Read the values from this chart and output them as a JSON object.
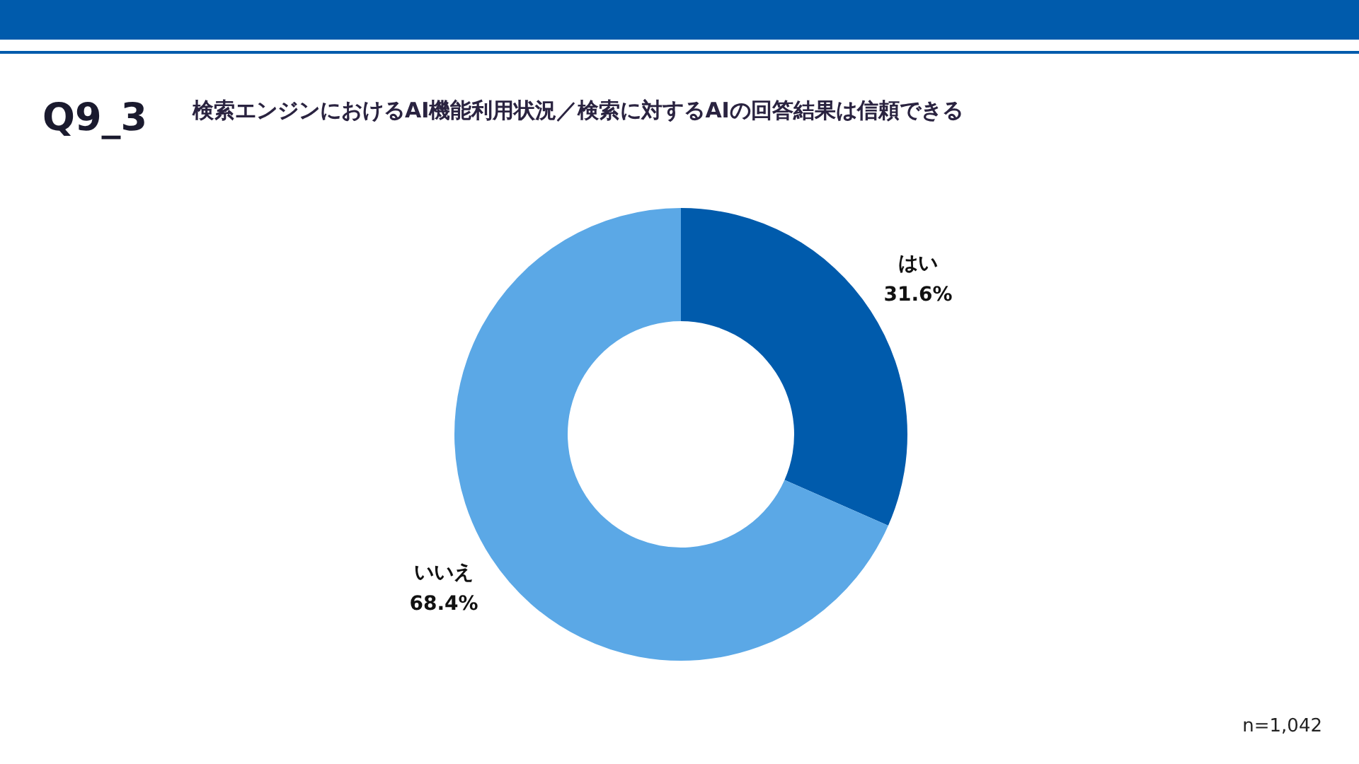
{
  "chart_data": {
    "type": "donut",
    "title": "検索エンジンにおけるAI機能利用状況／検索に対するAIの回答結果は信頼できる",
    "categories": [
      "はい",
      "いいえ"
    ],
    "values": [
      31.6,
      68.4
    ],
    "value_labels": [
      "31.6%",
      "68.4%"
    ],
    "colors": [
      "#005bac",
      "#5ba8e6"
    ],
    "legend": false,
    "annotations": [
      "Q9_3",
      "n=1,042"
    ]
  }
}
